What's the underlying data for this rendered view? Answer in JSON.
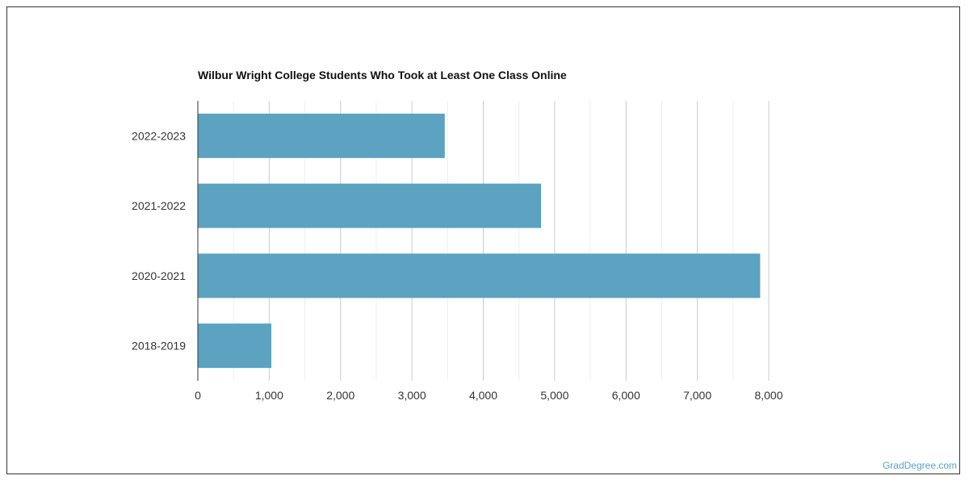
{
  "chart_data": {
    "type": "bar",
    "orientation": "horizontal",
    "title": "Wilbur Wright College Students Who Took at Least One Class Online",
    "categories": [
      "2022-2023",
      "2021-2022",
      "2020-2021",
      "2018-2019"
    ],
    "values": [
      3460,
      4810,
      7880,
      1030
    ],
    "xlabel": "",
    "ylabel": "",
    "xlim": [
      0,
      8000
    ],
    "xticks": [
      0,
      1000,
      2000,
      3000,
      4000,
      5000,
      6000,
      7000,
      8000
    ],
    "xtick_labels": [
      "0",
      "1,000",
      "2,000",
      "3,000",
      "4,000",
      "5,000",
      "6,000",
      "7,000",
      "8,000"
    ],
    "grid": true,
    "legend": "none",
    "bar_color": "#5ba3c0"
  },
  "credit": "GradDegree.com"
}
